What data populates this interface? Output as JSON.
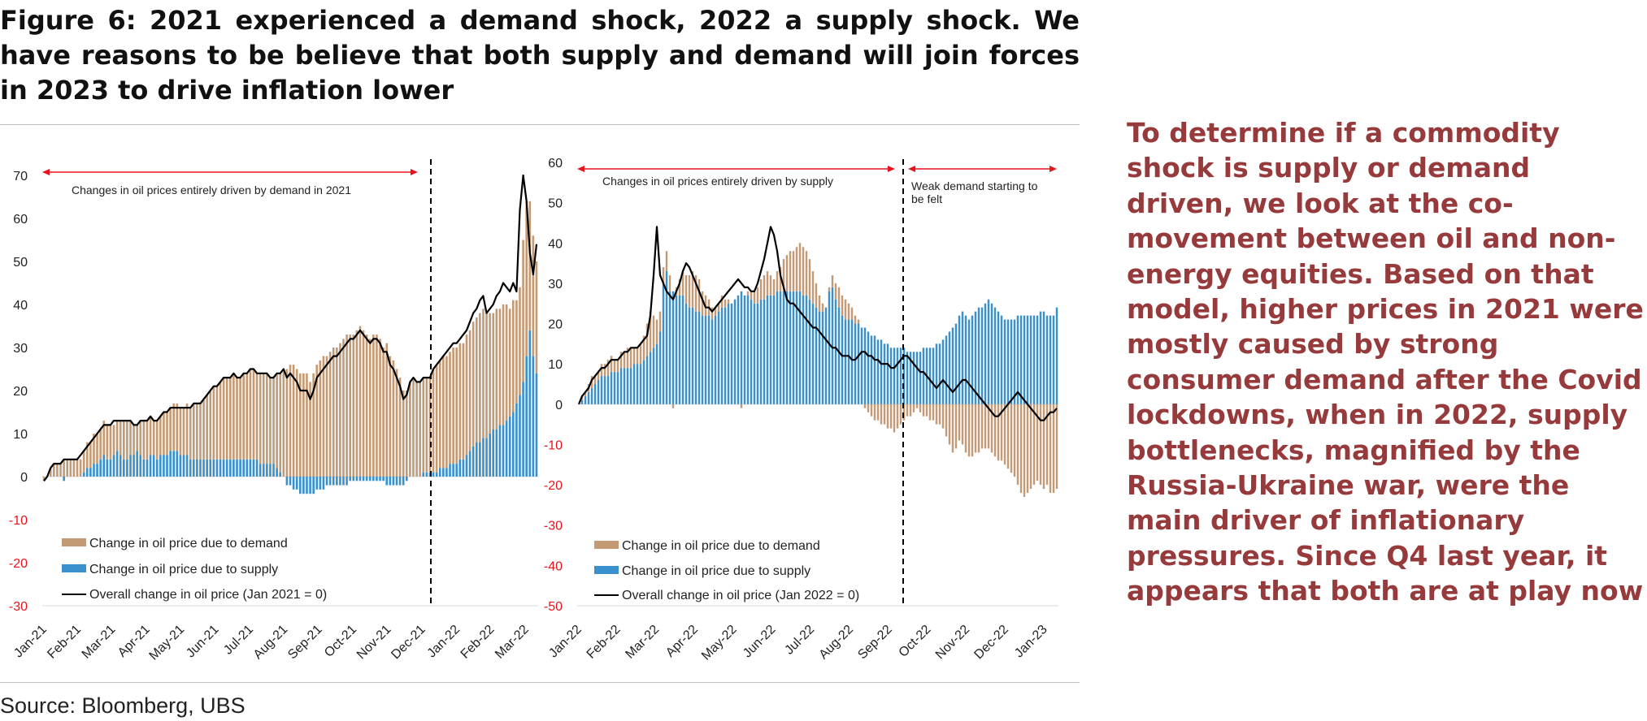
{
  "figure": {
    "title": "Figure 6: 2021 experienced a demand shock, 2022 a supply shock. We have reasons to be believe that both supply and demand will join forces in 2023 to drive inflation lower",
    "source": "Source: Bloomberg, UBS",
    "side_text": "To determine if a commodity shock is supply or demand driven, we look at the co-movement between oil and non-energy equities. Based on that model, higher prices in 2021 were mostly caused by strong consumer demand after the Covid lockdowns, when in 2022, supply bottlenecks, magnified by the Russia-Ukraine war, were the main driver of inflationary pressures. Since Q4 last year, it appears that both are at play now"
  },
  "colors": {
    "demand": "#c49a74",
    "supply": "#3990cc",
    "overall": "#000000",
    "annotation_arrow": "#e8141c",
    "negative_tick": "#e8141c",
    "side_text": "#963a3c"
  },
  "chart_data": [
    {
      "type": "bar",
      "stacked": true,
      "x_tick_labels": [
        "Jan-21",
        "Feb-21",
        "Mar-21",
        "Apr-21",
        "May-21",
        "Jun-21",
        "Jul-21",
        "Aug-21",
        "Sep-21",
        "Oct-21",
        "Nov-21",
        "Dec-21",
        "Jan-22",
        "Feb-22",
        "Mar-22"
      ],
      "ylim": [
        -30,
        70
      ],
      "yticks": [
        -30,
        -20,
        -10,
        0,
        10,
        20,
        30,
        40,
        50,
        60,
        70
      ],
      "divider_after": "Dec-21",
      "annotations": [
        {
          "text": "Changes in oil prices entirely driven by demand in 2021",
          "span": "Jan-21 to Dec-21"
        }
      ],
      "series": [
        {
          "name": "Change in oil price due to demand",
          "kind": "bar",
          "values": [
            -1,
            0,
            2,
            3,
            3,
            3,
            4,
            4,
            4,
            4,
            4,
            4,
            5,
            6,
            6,
            7,
            7,
            7,
            8,
            8,
            8,
            7,
            7,
            8,
            9,
            9,
            8,
            7,
            6,
            8,
            9,
            9,
            9,
            8,
            9,
            9,
            10,
            10,
            10,
            11,
            11,
            11,
            11,
            12,
            12,
            13,
            13,
            13,
            14,
            15,
            16,
            17,
            17,
            18,
            19,
            19,
            19,
            20,
            19,
            19,
            20,
            20,
            21,
            21,
            20,
            21,
            21,
            21,
            20,
            20,
            22,
            23,
            25,
            25,
            26,
            26,
            25,
            24,
            24,
            24,
            22,
            24,
            26,
            27,
            28,
            28,
            29,
            30,
            30,
            31,
            32,
            33,
            33,
            33,
            34,
            35,
            34,
            33,
            32,
            33,
            33,
            32,
            30,
            31,
            28,
            27,
            25,
            23,
            20,
            20,
            22,
            23,
            22,
            22,
            22,
            22,
            22,
            24,
            25,
            25,
            26,
            26,
            26,
            27,
            27,
            27,
            27,
            28,
            28,
            29,
            29,
            30,
            30,
            29,
            28,
            27,
            28,
            27,
            28,
            27,
            25,
            26,
            24,
            25,
            33,
            36,
            30,
            28,
            26
          ]
        },
        {
          "name": "Change in oil price due to supply",
          "kind": "bar",
          "values": [
            0,
            0,
            0,
            0,
            0,
            0,
            -1,
            0,
            0,
            0,
            0,
            0,
            1,
            2,
            2,
            3,
            3,
            4,
            5,
            4,
            4,
            5,
            6,
            5,
            4,
            4,
            5,
            5,
            6,
            5,
            4,
            4,
            5,
            5,
            4,
            5,
            5,
            5,
            6,
            6,
            6,
            5,
            5,
            5,
            4,
            4,
            4,
            4,
            4,
            4,
            4,
            4,
            4,
            4,
            4,
            4,
            4,
            4,
            4,
            4,
            4,
            4,
            4,
            4,
            4,
            3,
            3,
            3,
            3,
            3,
            2,
            1,
            0,
            -2,
            -2,
            -3,
            -3,
            -4,
            -4,
            -4,
            -4,
            -4,
            -3,
            -3,
            -3,
            -2,
            -2,
            -2,
            -2,
            -2,
            -2,
            -2,
            -1,
            -1,
            -1,
            -1,
            -1,
            -1,
            -1,
            -1,
            -1,
            -1,
            -1,
            -2,
            -2,
            -2,
            -2,
            -2,
            -2,
            -1,
            0,
            0,
            0,
            0,
            1,
            1,
            1,
            1,
            1,
            2,
            2,
            2,
            3,
            3,
            3,
            4,
            4,
            5,
            6,
            7,
            8,
            8,
            9,
            9,
            10,
            11,
            11,
            12,
            12,
            13,
            14,
            15,
            17,
            19,
            22,
            28,
            34,
            28,
            24,
            22,
            19
          ]
        },
        {
          "name": "Overall change in oil price (Jan 2021 = 0)",
          "kind": "line",
          "values": [
            -1,
            0,
            2,
            3,
            3,
            3,
            4,
            4,
            4,
            4,
            4,
            5,
            6,
            7,
            8,
            9,
            10,
            11,
            12,
            12,
            12,
            13,
            13,
            13,
            13,
            13,
            13,
            12,
            12,
            13,
            13,
            13,
            14,
            13,
            13,
            14,
            15,
            15,
            16,
            16,
            16,
            16,
            16,
            16,
            16,
            17,
            17,
            17,
            18,
            19,
            20,
            21,
            21,
            22,
            23,
            23,
            23,
            24,
            23,
            23,
            24,
            24,
            25,
            25,
            24,
            24,
            24,
            24,
            23,
            23,
            24,
            24,
            25,
            23,
            24,
            23,
            22,
            20,
            20,
            20,
            18,
            20,
            23,
            24,
            25,
            26,
            27,
            28,
            28,
            29,
            30,
            31,
            32,
            32,
            33,
            34,
            33,
            32,
            31,
            32,
            32,
            31,
            29,
            29,
            26,
            25,
            23,
            21,
            18,
            19,
            22,
            23,
            22,
            22,
            23,
            23,
            23,
            25,
            26,
            27,
            28,
            29,
            30,
            31,
            31,
            32,
            33,
            34,
            36,
            38,
            39,
            41,
            42,
            38,
            39,
            40,
            42,
            43,
            45,
            44,
            43,
            45,
            43,
            62,
            70,
            64,
            52,
            47,
            54
          ]
        }
      ],
      "legend": [
        "Change in oil price due to demand",
        "Change in oil price due to supply",
        "Overall change in oil price (Jan 2021 = 0)"
      ],
      "legend_position": "bottom-left"
    },
    {
      "type": "bar",
      "stacked": true,
      "x_tick_labels": [
        "Jan-22",
        "Feb-22",
        "Mar-22",
        "Apr-22",
        "May-22",
        "Jun-22",
        "Jul-22",
        "Aug-22",
        "Sep-22",
        "Oct-22",
        "Nov-22",
        "Dec-22",
        "Jan-23"
      ],
      "ylim": [
        -50,
        60
      ],
      "yticks": [
        -50,
        -40,
        -30,
        -20,
        -10,
        0,
        10,
        20,
        30,
        40,
        50,
        60
      ],
      "divider_after": "Sep-22",
      "annotations": [
        {
          "text": "Changes in oil prices entirely driven by supply",
          "span": "Jan-22 to Sep-22"
        },
        {
          "text": "Weak demand starting to be felt",
          "span": "Sep-22 to Jan-23"
        }
      ],
      "series": [
        {
          "name": "Change in oil price due to demand",
          "kind": "bar",
          "values": [
            0,
            1,
            1,
            2,
            3,
            2,
            2,
            3,
            3,
            4,
            4,
            3,
            3,
            4,
            4,
            5,
            5,
            4,
            4,
            5,
            6,
            8,
            10,
            8,
            6,
            5,
            4,
            5,
            4,
            -1,
            2,
            4,
            6,
            7,
            8,
            9,
            9,
            8,
            6,
            5,
            4,
            3,
            2,
            2,
            3,
            2,
            1,
            0,
            0,
            0,
            -1,
            0,
            1,
            2,
            3,
            4,
            5,
            6,
            6,
            5,
            4,
            5,
            6,
            8,
            9,
            10,
            10,
            11,
            12,
            12,
            11,
            10,
            8,
            6,
            4,
            2,
            0,
            1,
            3,
            4,
            5,
            5,
            5,
            4,
            3,
            2,
            1,
            0,
            -1,
            -2,
            -3,
            -4,
            -4,
            -5,
            -5,
            -6,
            -6,
            -7,
            -6,
            -5,
            -4,
            -3,
            -3,
            -2,
            -1,
            -2,
            -3,
            -3,
            -4,
            -4,
            -5,
            -5,
            -6,
            -8,
            -10,
            -12,
            -11,
            -9,
            -10,
            -12,
            -13,
            -13,
            -12,
            -12,
            -11,
            -11,
            -11,
            -12,
            -13,
            -14,
            -14,
            -15,
            -16,
            -17,
            -18,
            -20,
            -22,
            -23,
            -22,
            -21,
            -20,
            -19,
            -20,
            -21,
            -20,
            -22,
            -22,
            -21
          ]
        },
        {
          "name": "Change in oil price due to supply",
          "kind": "bar",
          "values": [
            0,
            1,
            2,
            3,
            4,
            5,
            6,
            7,
            7,
            7,
            8,
            8,
            8,
            9,
            9,
            9,
            9,
            10,
            10,
            10,
            11,
            12,
            13,
            14,
            15,
            18,
            30,
            33,
            28,
            28,
            27,
            27,
            27,
            25,
            24,
            24,
            23,
            23,
            22,
            22,
            22,
            21,
            22,
            23,
            24,
            24,
            25,
            25,
            26,
            27,
            28,
            27,
            27,
            26,
            25,
            25,
            26,
            26,
            27,
            27,
            27,
            28,
            28,
            28,
            28,
            28,
            28,
            28,
            28,
            27,
            27,
            26,
            25,
            24,
            23,
            23,
            24,
            28,
            29,
            26,
            24,
            22,
            21,
            21,
            21,
            20,
            20,
            19,
            19,
            18,
            17,
            17,
            16,
            16,
            15,
            15,
            14,
            14,
            14,
            14,
            14,
            13,
            13,
            13,
            13,
            13,
            14,
            14,
            14,
            14,
            15,
            15,
            16,
            17,
            18,
            19,
            20,
            22,
            23,
            22,
            21,
            22,
            23,
            24,
            24,
            25,
            26,
            25,
            24,
            23,
            22,
            21,
            21,
            21,
            21,
            22,
            22,
            22,
            22,
            22,
            22,
            22,
            23,
            23,
            22,
            22,
            22,
            24,
            24,
            22,
            21,
            21,
            21
          ]
        },
        {
          "name": "Overall change in oil price (Jan 2022 = 0)",
          "kind": "line",
          "values": [
            0,
            2,
            3,
            4,
            6,
            7,
            8,
            9,
            9,
            10,
            11,
            11,
            11,
            12,
            13,
            13,
            14,
            14,
            14,
            15,
            16,
            17,
            22,
            32,
            44,
            32,
            30,
            28,
            27,
            26,
            28,
            30,
            33,
            35,
            34,
            32,
            30,
            28,
            26,
            24,
            24,
            23,
            24,
            25,
            26,
            27,
            28,
            29,
            30,
            31,
            30,
            29,
            29,
            28,
            28,
            30,
            33,
            36,
            40,
            44,
            42,
            38,
            32,
            29,
            26,
            25,
            25,
            24,
            23,
            22,
            21,
            20,
            19,
            19,
            18,
            17,
            16,
            15,
            14,
            14,
            13,
            12,
            12,
            12,
            11,
            11,
            12,
            13,
            13,
            12,
            12,
            11,
            11,
            10,
            10,
            10,
            9,
            9,
            10,
            11,
            12,
            12,
            11,
            10,
            9,
            8,
            8,
            7,
            6,
            5,
            4,
            5,
            6,
            5,
            4,
            3,
            4,
            5,
            6,
            6,
            5,
            4,
            3,
            2,
            1,
            0,
            -1,
            -2,
            -3,
            -3,
            -2,
            -1,
            0,
            1,
            2,
            3,
            2,
            1,
            0,
            -1,
            -2,
            -3,
            -4,
            -4,
            -3,
            -2,
            -2,
            -1,
            0,
            1,
            1,
            -1,
            0
          ]
        }
      ],
      "legend": [
        "Change in oil price due to demand",
        "Change in oil price due to supply",
        "Overall change in oil price (Jan 2022 = 0)"
      ],
      "legend_position": "bottom-left"
    }
  ]
}
